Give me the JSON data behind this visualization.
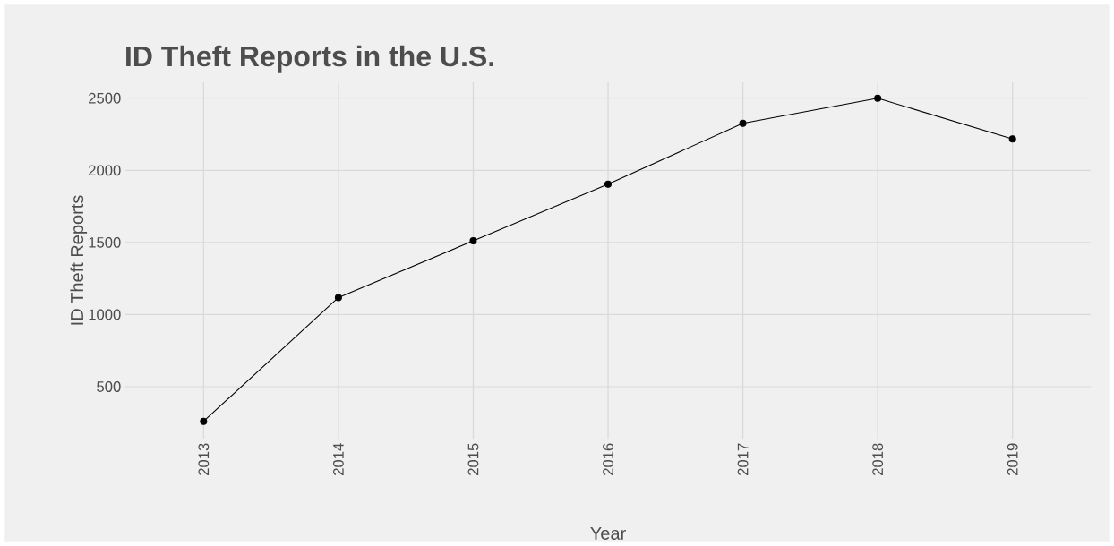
{
  "chart_data": {
    "type": "line",
    "title": "ID Theft Reports in the U.S.",
    "xlabel": "Year",
    "ylabel": "ID Theft Reports",
    "categories": [
      "2013",
      "2014",
      "2015",
      "2016",
      "2017",
      "2018",
      "2019"
    ],
    "values": [
      260,
      1118,
      1511,
      1904,
      2326,
      2500,
      2217
    ],
    "color": "#000000",
    "marker": "circle",
    "line_style": "solid",
    "ylim": [
      140,
      2610
    ],
    "yticks": [
      500,
      1000,
      1500,
      2000,
      2500
    ],
    "grid": true
  }
}
